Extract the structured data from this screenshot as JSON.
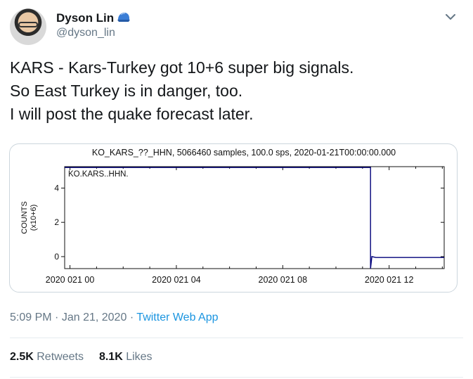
{
  "user": {
    "name": "Dyson Lin",
    "handle": "@dyson_lin",
    "badge_icon": "blue-cap-icon"
  },
  "tweet": {
    "lines": [
      "KARS - Kars-Turkey got 10+6 super big signals.",
      "So East Turkey is in danger, too.",
      "I will post the quake forecast later."
    ]
  },
  "meta": {
    "time": "5:09 PM",
    "date": "Jan 21, 2020",
    "separator": "·",
    "app": "Twitter Web App"
  },
  "stats": {
    "retweets_count": "2.5K",
    "retweets_label": "Retweets",
    "likes_count": "8.1K",
    "likes_label": "Likes"
  },
  "colors": {
    "accent": "#1b95e0",
    "trace": "#00007a",
    "muted": "#657786"
  },
  "chart_data": {
    "type": "line",
    "title": "KO_KARS_??_HHN, 5066460 samples, 100.0 sps, 2020-01-21T00:00:00.000",
    "series_label": "KO.KARS..HHN.",
    "ylabel": "COUNTS",
    "ylabel_unit": "(x10+6)",
    "xlabel": "",
    "x_ticks": [
      {
        "label": "2020 021 00",
        "hour": 0
      },
      {
        "label": "2020 021 04",
        "hour": 4
      },
      {
        "label": "2020 021 08",
        "hour": 8
      },
      {
        "label": "2020 021 12",
        "hour": 12
      }
    ],
    "y_ticks": [
      0,
      2,
      4
    ],
    "xlim_hours": [
      -0.2,
      14.07
    ],
    "ylim": [
      -0.7,
      5.25
    ],
    "series": [
      {
        "x_hours": [
          -0.2,
          11.3,
          11.3,
          11.3,
          11.35,
          11.5,
          14.07
        ],
        "values": [
          5.2,
          5.2,
          5.2,
          -0.7,
          0.0,
          -0.05,
          -0.05
        ]
      }
    ],
    "grid": false
  }
}
